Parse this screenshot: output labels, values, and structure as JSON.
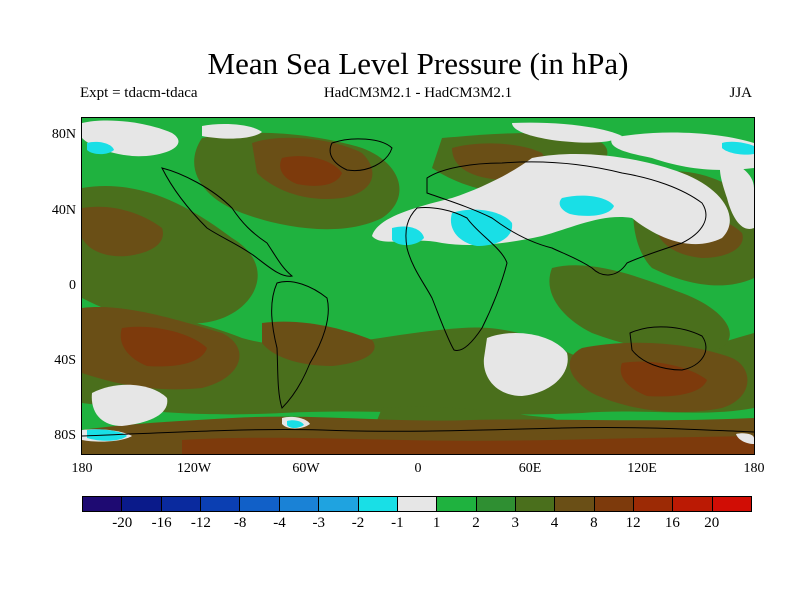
{
  "title": "Mean Sea Level Pressure (in hPa)",
  "subtitle_left": "Expt = tdacm-tdaca",
  "subtitle_center": "HadCM3M2.1 - HadCM3M2.1",
  "subtitle_right": "JJA",
  "lat_labels": [
    "80N",
    "40N",
    "0",
    "40S",
    "80S"
  ],
  "lon_labels": [
    "180",
    "120W",
    "60W",
    "0",
    "60E",
    "120E",
    "180"
  ],
  "colorbar": {
    "colors": [
      "#1e0a72",
      "#0a1a8a",
      "#0a2a9e",
      "#0b3fb2",
      "#1160c8",
      "#1a82d6",
      "#1fa3e0",
      "#19dfe6",
      "#e6e6e6",
      "#1fb23f",
      "#2f8f32",
      "#4a6f1c",
      "#6a4f16",
      "#7d3a0c",
      "#9c2a05",
      "#bb1a04",
      "#d10d05"
    ],
    "labels": [
      "-20",
      "-16",
      "-12",
      "-8",
      "-4",
      "-3",
      "-2",
      "-1",
      "1",
      "2",
      "3",
      "4",
      "8",
      "12",
      "16",
      "20"
    ]
  },
  "map_colors": {
    "green": "#1fb23f",
    "dark_green": "#2f8f32",
    "olive": "#4a6f1c",
    "brown": "#6a4f16",
    "dark_brown": "#7d3a0c",
    "white": "#e6e6e6",
    "cyan": "#19dfe6"
  }
}
